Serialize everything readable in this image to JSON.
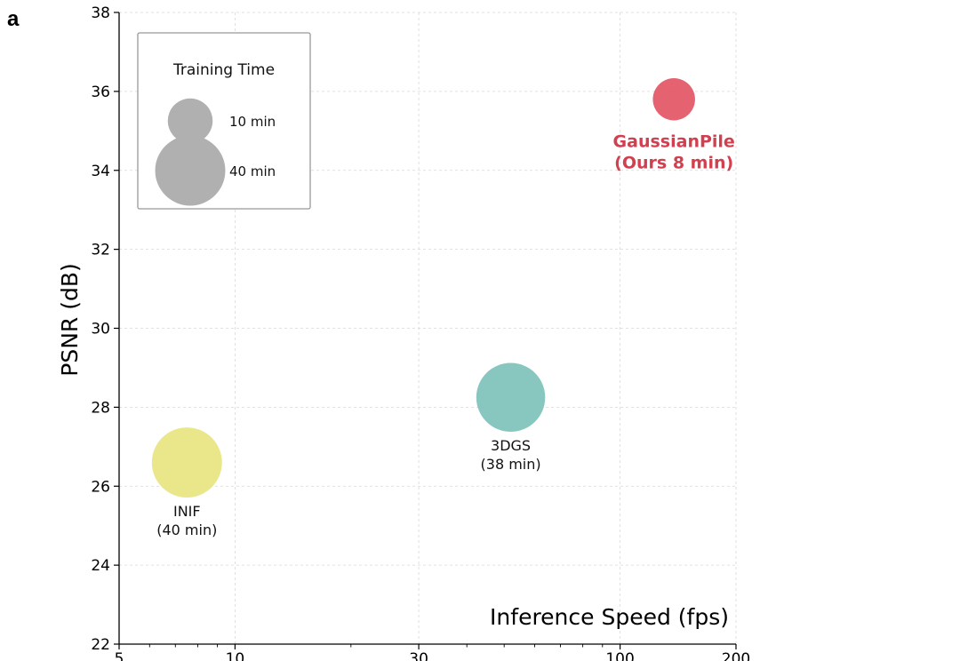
{
  "panel_label": "a",
  "chart_data": {
    "type": "scatter",
    "title": "",
    "xlabel": "Inference Speed (fps)",
    "ylabel": "PSNR (dB)",
    "xscale": "log",
    "xlim": [
      5,
      200
    ],
    "ylim": [
      22,
      38
    ],
    "xticks": [
      5,
      10,
      30,
      100,
      200
    ],
    "yticks": [
      22,
      24,
      26,
      28,
      30,
      32,
      34,
      36,
      38
    ],
    "grid": true,
    "legend": {
      "title": "Training Time",
      "placement": "top-left",
      "entries": [
        {
          "label": "10 min",
          "minutes": 10
        },
        {
          "label": "40 min",
          "minutes": 40
        }
      ],
      "color": "#b0b0b0"
    },
    "points": [
      {
        "name": "INIF",
        "label_lines": [
          "INIF",
          "(40 min)"
        ],
        "x": 7.5,
        "y": 26.6,
        "minutes": 40,
        "color": "#e8e684",
        "label_color": "#111111",
        "bold": false
      },
      {
        "name": "3DGS",
        "label_lines": [
          "3DGS",
          "(38 min)"
        ],
        "x": 52,
        "y": 28.25,
        "minutes": 38,
        "color": "#82c4bd",
        "label_color": "#111111",
        "bold": false
      },
      {
        "name": "GaussianPile",
        "label_lines": [
          "GaussianPile",
          "(Ours 8 min)"
        ],
        "x": 138,
        "y": 35.8,
        "minutes": 8,
        "color": "#e45a68",
        "label_color": "#d2404f",
        "bold": true
      }
    ]
  }
}
